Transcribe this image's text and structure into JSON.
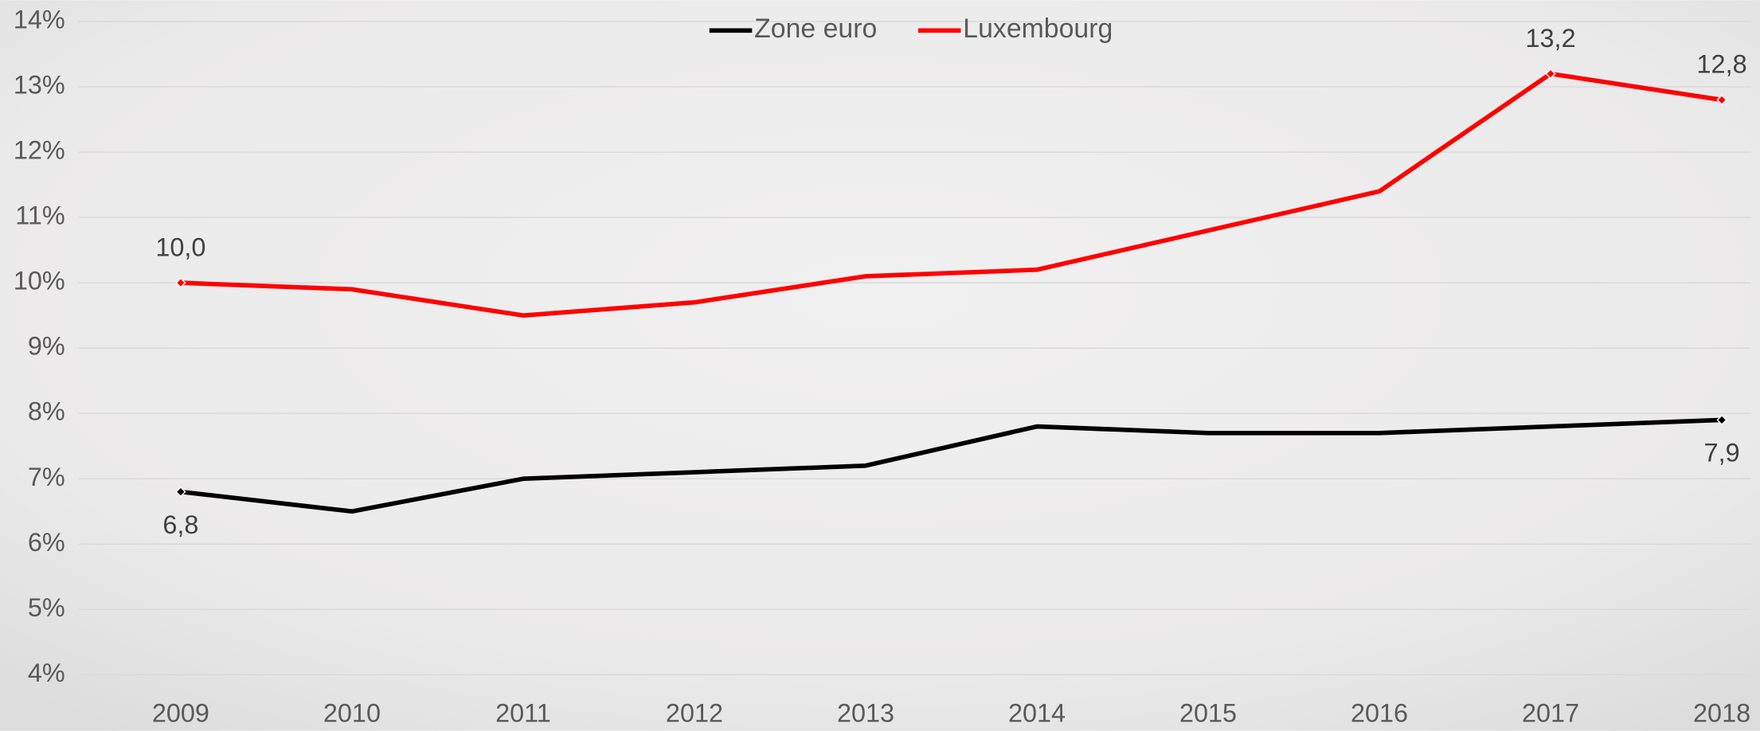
{
  "chart_data": {
    "type": "line",
    "categories": [
      "2009",
      "2010",
      "2011",
      "2012",
      "2013",
      "2014",
      "2015",
      "2016",
      "2017",
      "2018"
    ],
    "series": [
      {
        "name": "Zone euro",
        "color": "#000000",
        "values": [
          6.8,
          6.5,
          7.0,
          7.1,
          7.2,
          7.8,
          7.7,
          7.7,
          7.8,
          7.9
        ],
        "value_labels": [
          "6,8",
          null,
          null,
          null,
          null,
          null,
          null,
          null,
          null,
          "7,9"
        ]
      },
      {
        "name": "Luxembourg",
        "color": "#ff0000",
        "values": [
          10.0,
          9.9,
          9.5,
          9.7,
          10.1,
          10.2,
          10.8,
          11.4,
          13.2,
          12.8
        ],
        "value_labels": [
          "10,0",
          null,
          null,
          null,
          null,
          null,
          null,
          null,
          "13,2",
          "12,8"
        ]
      }
    ],
    "ylim": [
      4,
      14
    ],
    "yticks": [
      {
        "value": 4,
        "label": "4%"
      },
      {
        "value": 5,
        "label": "5%"
      },
      {
        "value": 6,
        "label": "6%"
      },
      {
        "value": 7,
        "label": "7%"
      },
      {
        "value": 8,
        "label": "8%"
      },
      {
        "value": 9,
        "label": "9%"
      },
      {
        "value": 10,
        "label": "10%"
      },
      {
        "value": 11,
        "label": "11%"
      },
      {
        "value": 12,
        "label": "12%"
      },
      {
        "value": 13,
        "label": "13%"
      },
      {
        "value": 14,
        "label": "14%"
      }
    ],
    "grid": true,
    "legend": "top"
  }
}
